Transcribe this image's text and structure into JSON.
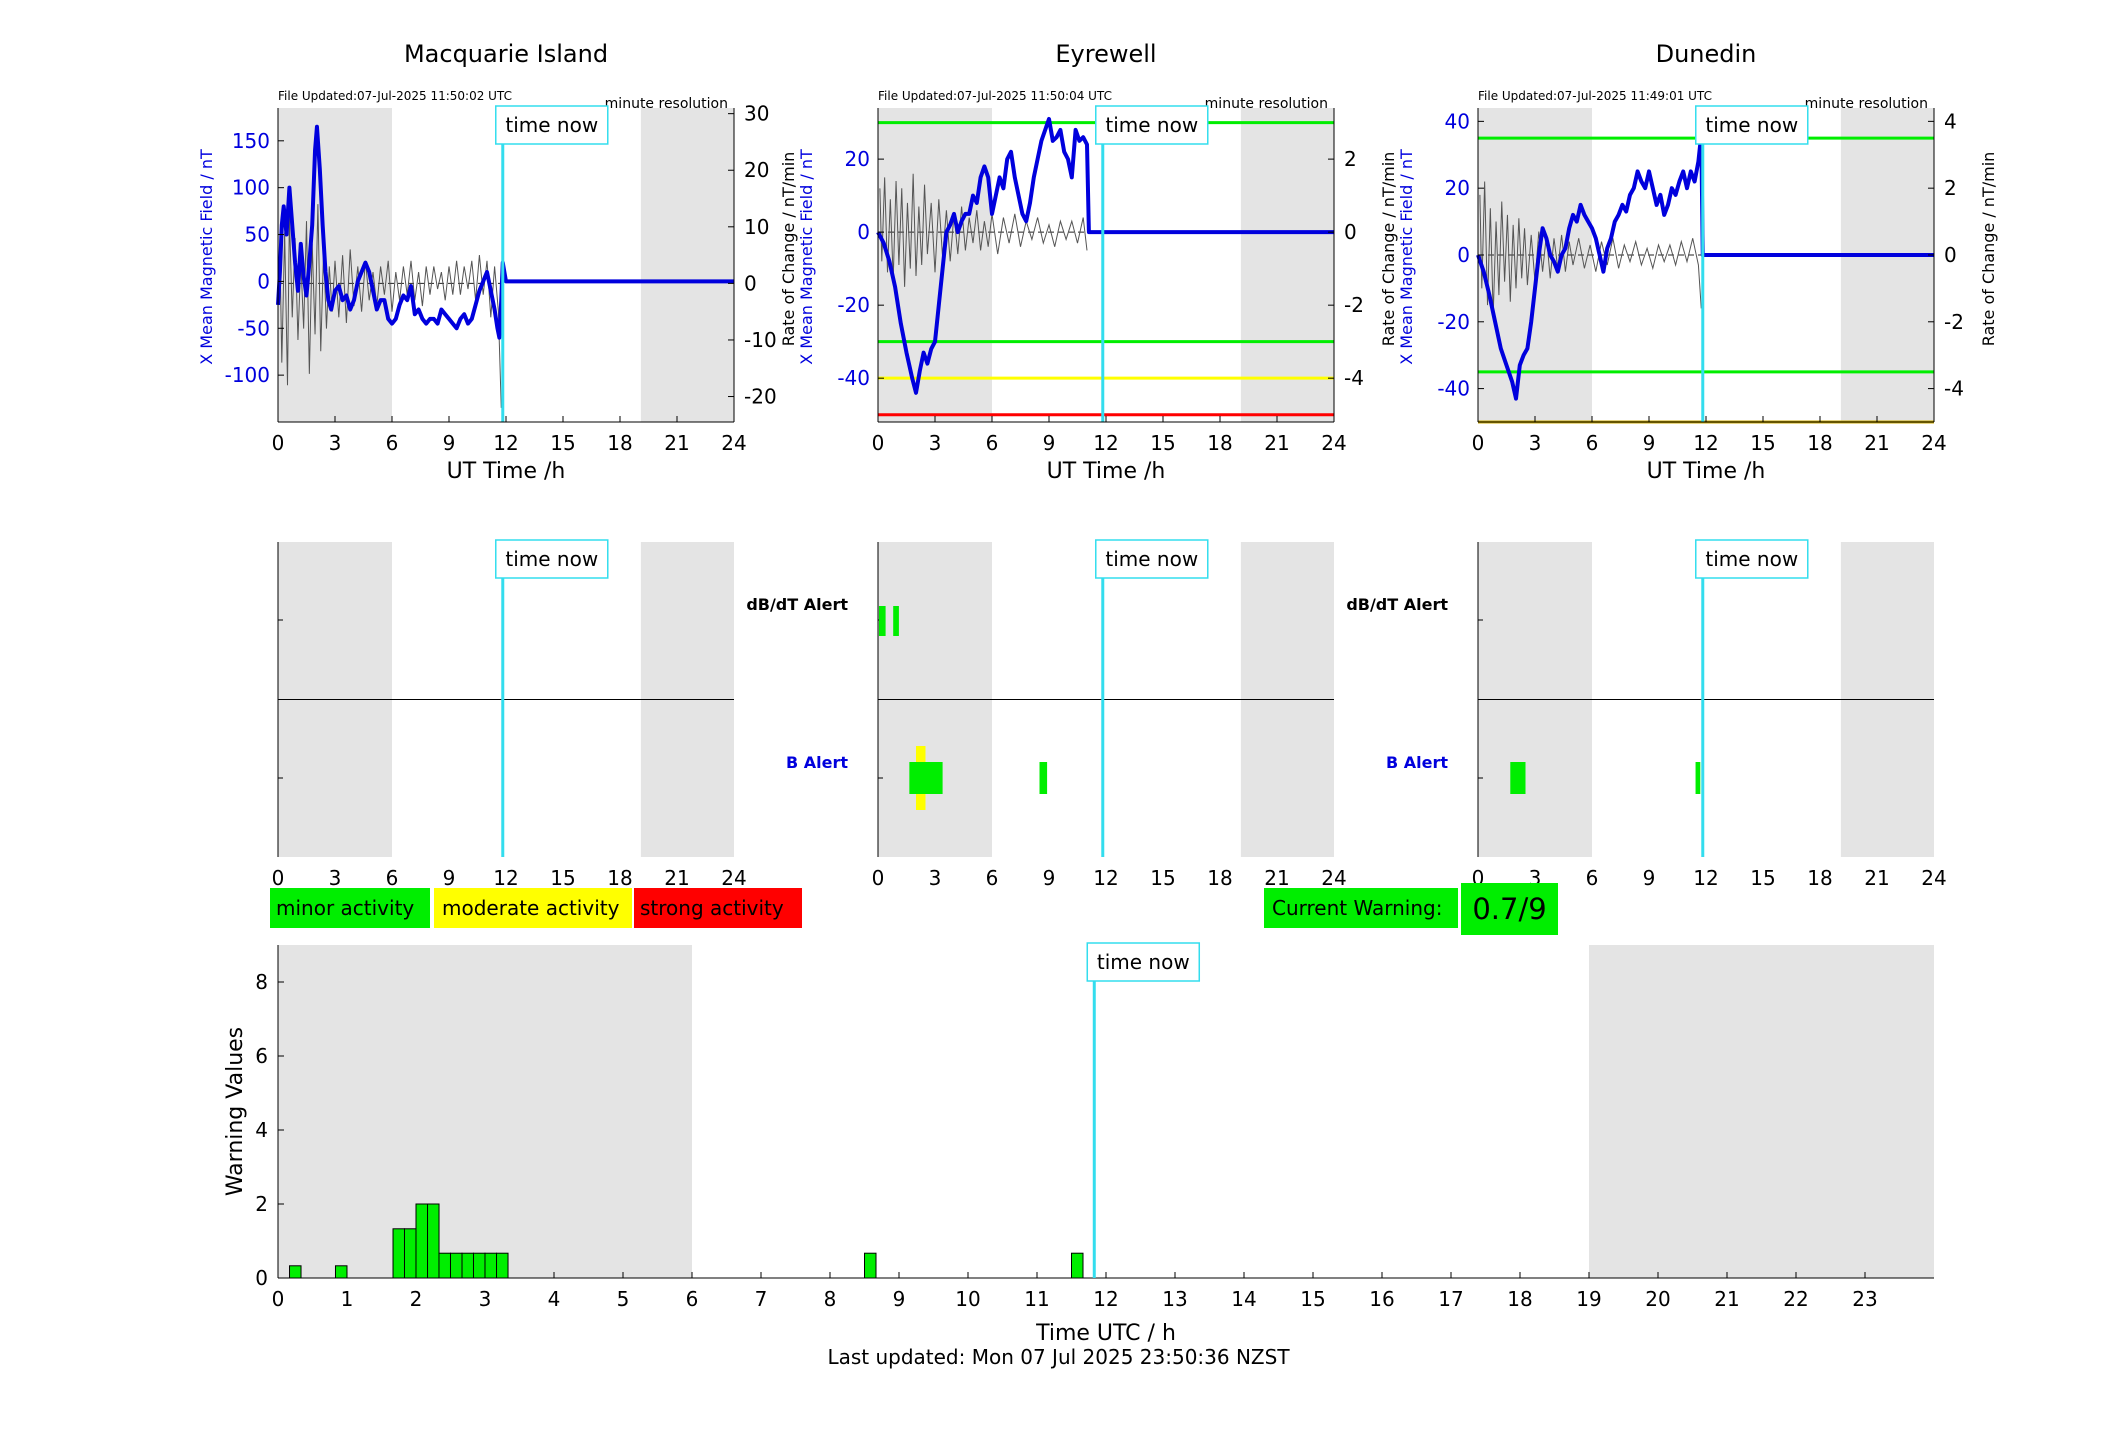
{
  "footer": {
    "last_updated": "Last updated: Mon 07 Jul 2025 23:50:36 NZST"
  },
  "warning_badge": {
    "label": "Current Warning:",
    "value": "0.7/9",
    "color": "#00ee00"
  },
  "legend": [
    {
      "label": "minor activity",
      "color": "#00ee00"
    },
    {
      "label": "moderate activity",
      "color": "#ffff00"
    },
    {
      "label": "strong activity",
      "color": "#ff0000"
    }
  ],
  "colors": {
    "field": "#0000dd",
    "rate": "#555555",
    "now_line": "#33ddee",
    "night": "#e4e4e4",
    "green": "#00ee00",
    "yellow": "#ffff00",
    "red": "#ff0000"
  },
  "chart_data": [
    {
      "type": "line",
      "title": "Macquarie Island",
      "file_updated": "File Updated:07-Jul-2025 11:50:02 UTC",
      "resolution": "minute resolution",
      "xlabel": "UT Time /h",
      "ylabel": "X Mean Magnetic Field / nT",
      "ylabel_right": "Rate of Change / nT/min",
      "xlim": [
        0,
        24
      ],
      "xticks": [
        0,
        3,
        6,
        9,
        12,
        15,
        18,
        21,
        24
      ],
      "ylim": [
        -150,
        185
      ],
      "yticks": [
        -100,
        -50,
        0,
        50,
        100,
        150
      ],
      "ylim_right": [
        -24.5,
        31
      ],
      "yticks_right": [
        -20,
        -10,
        0,
        10,
        20,
        30
      ],
      "now_label": "time now",
      "now_hour": 11.83,
      "night_hours": [
        [
          0,
          6
        ],
        [
          19.1,
          24
        ]
      ],
      "threshold_lines": [],
      "series": [
        {
          "x": [
            0,
            0.1,
            0.2,
            0.3,
            0.45,
            0.6,
            0.75,
            0.9,
            1.05,
            1.2,
            1.35,
            1.5,
            1.65,
            1.8,
            1.95,
            2.05,
            2.2,
            2.35,
            2.5,
            2.65,
            2.8,
            3.0,
            3.2,
            3.4,
            3.6,
            3.8,
            4.0,
            4.2,
            4.4,
            4.6,
            4.8,
            5.0,
            5.2,
            5.4,
            5.6,
            5.8,
            6.0,
            6.2,
            6.4,
            6.6,
            6.8,
            7.0,
            7.2,
            7.4,
            7.6,
            7.8,
            8.0,
            8.2,
            8.4,
            8.6,
            8.8,
            9.0,
            9.2,
            9.4,
            9.6,
            9.8,
            10.0,
            10.2,
            10.4,
            10.6,
            10.8,
            11.0,
            11.2,
            11.4,
            11.55,
            11.65,
            11.75,
            11.83,
            12,
            24
          ],
          "y": [
            -25,
            10,
            60,
            80,
            50,
            100,
            60,
            20,
            -10,
            40,
            5,
            -15,
            20,
            60,
            140,
            165,
            120,
            60,
            10,
            -20,
            -30,
            -10,
            -5,
            -20,
            -15,
            -30,
            -20,
            0,
            10,
            20,
            10,
            -10,
            -30,
            -20,
            -20,
            -40,
            -45,
            -40,
            -25,
            -15,
            -20,
            -5,
            -35,
            -30,
            -40,
            -45,
            -40,
            -40,
            -45,
            -30,
            -35,
            -40,
            -45,
            -50,
            -40,
            -35,
            -45,
            -40,
            -25,
            -10,
            0,
            10,
            -10,
            -30,
            -50,
            -60,
            -20,
            20,
            0,
            0
          ]
        }
      ],
      "rate_series": {
        "x": [
          0.1,
          0.2,
          0.35,
          0.5,
          0.6,
          0.75,
          0.9,
          1.05,
          1.2,
          1.35,
          1.5,
          1.65,
          1.8,
          1.95,
          2.1,
          2.25,
          2.4,
          2.55,
          2.7,
          2.85,
          3.0,
          3.2,
          3.4,
          3.6,
          3.8,
          4.0,
          4.2,
          4.4,
          4.6,
          4.8,
          5.0,
          5.2,
          5.4,
          5.6,
          5.8,
          6.0,
          6.2,
          6.4,
          6.6,
          6.8,
          7.0,
          7.2,
          7.4,
          7.6,
          7.8,
          8.0,
          8.2,
          8.4,
          8.6,
          8.8,
          9.0,
          9.2,
          9.4,
          9.6,
          9.8,
          10.0,
          10.2,
          10.4,
          10.6,
          10.8,
          11.0,
          11.2,
          11.4,
          11.6,
          11.75
        ],
        "y": [
          6,
          -14,
          9,
          -18,
          12,
          -6,
          8,
          -10,
          4,
          -8,
          11,
          -16,
          7,
          -9,
          14,
          -12,
          6,
          -8,
          3,
          -5,
          4,
          -6,
          5,
          -7,
          6,
          -4,
          3,
          -5,
          4,
          -3,
          2,
          -4,
          3,
          -2,
          4,
          -5,
          2,
          -3,
          3,
          -2,
          4,
          -3,
          2,
          -4,
          3,
          -2,
          3,
          -1,
          2,
          -3,
          3,
          -2,
          4,
          -2,
          3,
          -1,
          4,
          -3,
          5,
          -2,
          4,
          -6,
          3,
          -5,
          -22
        ]
      },
      "dbdt_alerts": [],
      "b_alerts": []
    },
    {
      "type": "line",
      "title": "Eyrewell",
      "file_updated": "File Updated:07-Jul-2025 11:50:04 UTC",
      "resolution": "minute resolution",
      "xlabel": "UT Time /h",
      "ylabel": "X Mean Magnetic Field / nT",
      "ylabel_right": "Rate of Change / nT/min",
      "xlim": [
        0,
        24
      ],
      "xticks": [
        0,
        3,
        6,
        9,
        12,
        15,
        18,
        21,
        24
      ],
      "ylim": [
        -52,
        34
      ],
      "yticks": [
        -40,
        -20,
        0,
        20
      ],
      "ylim_right": [
        -5.2,
        3.4
      ],
      "yticks_right": [
        -4,
        -2,
        0,
        2
      ],
      "now_label": "time now",
      "now_hour": 11.83,
      "night_hours": [
        [
          0,
          6
        ],
        [
          19.1,
          24
        ]
      ],
      "threshold_lines": [
        {
          "value": 30,
          "color": "#00ee00"
        },
        {
          "value": -30,
          "color": "#00ee00"
        },
        {
          "value": -40,
          "color": "#ffff00"
        },
        {
          "value": -50,
          "color": "#ff0000"
        }
      ],
      "series": [
        {
          "x": [
            0,
            0.3,
            0.6,
            0.9,
            1.2,
            1.5,
            1.8,
            2.0,
            2.2,
            2.4,
            2.6,
            2.8,
            3.0,
            3.2,
            3.4,
            3.6,
            3.8,
            4.0,
            4.2,
            4.4,
            4.6,
            4.8,
            5.0,
            5.2,
            5.4,
            5.6,
            5.8,
            6.0,
            6.2,
            6.4,
            6.6,
            6.8,
            7.0,
            7.2,
            7.4,
            7.6,
            7.8,
            8.0,
            8.2,
            8.4,
            8.6,
            8.8,
            9.0,
            9.2,
            9.4,
            9.6,
            9.8,
            10.0,
            10.2,
            10.4,
            10.6,
            10.8,
            11.0,
            11.1,
            11.83,
            12,
            24
          ],
          "y": [
            0,
            -3,
            -8,
            -15,
            -25,
            -33,
            -40,
            -44,
            -38,
            -33,
            -36,
            -32,
            -30,
            -20,
            -10,
            0,
            2,
            5,
            0,
            3,
            5,
            5,
            10,
            8,
            15,
            18,
            15,
            5,
            10,
            15,
            12,
            20,
            22,
            15,
            10,
            5,
            3,
            8,
            15,
            20,
            25,
            28,
            31,
            25,
            26,
            28,
            22,
            20,
            15,
            28,
            25,
            26,
            24,
            0,
            0,
            0,
            0
          ]
        }
      ],
      "rate_series": {
        "x": [
          0.1,
          0.2,
          0.35,
          0.5,
          0.65,
          0.8,
          0.95,
          1.1,
          1.25,
          1.4,
          1.55,
          1.7,
          1.85,
          2.0,
          2.15,
          2.3,
          2.45,
          2.6,
          2.8,
          3.0,
          3.2,
          3.4,
          3.6,
          3.8,
          4.0,
          4.2,
          4.4,
          4.6,
          4.8,
          5.0,
          5.2,
          5.4,
          5.6,
          5.8,
          6.0,
          6.3,
          6.6,
          6.9,
          7.2,
          7.5,
          7.8,
          8.1,
          8.4,
          8.7,
          9.0,
          9.3,
          9.6,
          9.9,
          10.2,
          10.5,
          10.8,
          11.0
        ],
        "y": [
          1.2,
          -0.8,
          1.5,
          -1.1,
          0.9,
          -1.3,
          1.4,
          -0.9,
          1.2,
          -1.5,
          0.8,
          -1.0,
          1.6,
          -1.2,
          0.7,
          -0.9,
          1.3,
          -0.6,
          0.8,
          -1.1,
          0.9,
          -0.7,
          0.6,
          -0.8,
          0.5,
          -0.6,
          0.7,
          -0.5,
          0.4,
          -0.3,
          0.6,
          -0.5,
          0.3,
          -0.4,
          0.5,
          -0.6,
          0.4,
          -0.3,
          0.5,
          -0.4,
          0.3,
          -0.2,
          0.4,
          -0.3,
          0.2,
          -0.4,
          0.3,
          -0.2,
          0.3,
          -0.3,
          0.4,
          -0.5
        ]
      },
      "dbdt_alerts": [
        {
          "start": 0.05,
          "end": 0.4,
          "level": "minor"
        },
        {
          "start": 0.8,
          "end": 1.1,
          "level": "minor"
        }
      ],
      "b_alerts": [
        {
          "start": 2.0,
          "end": 2.5,
          "level": "moderate"
        },
        {
          "start": 1.65,
          "end": 3.4,
          "level": "minor"
        },
        {
          "start": 8.5,
          "end": 8.9,
          "level": "minor"
        }
      ]
    },
    {
      "type": "line",
      "title": "Dunedin",
      "file_updated": "File Updated:07-Jul-2025 11:49:01 UTC",
      "resolution": "minute resolution",
      "xlabel": "UT Time /h",
      "ylabel": "X Mean Magnetic Field / nT",
      "ylabel_right": "Rate of Change / nT/min",
      "xlim": [
        0,
        24
      ],
      "xticks": [
        0,
        3,
        6,
        9,
        12,
        15,
        18,
        21,
        24
      ],
      "ylim": [
        -50,
        44
      ],
      "yticks": [
        -40,
        -20,
        0,
        20,
        40
      ],
      "ylim_right": [
        -5.0,
        4.4
      ],
      "yticks_right": [
        -4,
        -2,
        0,
        2,
        4
      ],
      "now_label": "time now",
      "now_hour": 11.83,
      "night_hours": [
        [
          0,
          6
        ],
        [
          19.1,
          24
        ]
      ],
      "threshold_lines": [
        {
          "value": 35,
          "color": "#00ee00"
        },
        {
          "value": -35,
          "color": "#00ee00"
        },
        {
          "value": -50,
          "color": "#ccaa00"
        }
      ],
      "series": [
        {
          "x": [
            0,
            0.3,
            0.6,
            0.9,
            1.2,
            1.5,
            1.8,
            2.0,
            2.2,
            2.4,
            2.6,
            2.8,
            3.0,
            3.2,
            3.4,
            3.6,
            3.8,
            4.0,
            4.2,
            4.4,
            4.6,
            4.8,
            5.0,
            5.2,
            5.4,
            5.6,
            5.8,
            6.0,
            6.2,
            6.4,
            6.6,
            6.8,
            7.0,
            7.2,
            7.4,
            7.6,
            7.8,
            8.0,
            8.2,
            8.4,
            8.6,
            8.8,
            9.0,
            9.2,
            9.4,
            9.6,
            9.8,
            10.0,
            10.2,
            10.4,
            10.6,
            10.8,
            11.0,
            11.2,
            11.4,
            11.6,
            11.75,
            11.83,
            12,
            24
          ],
          "y": [
            0,
            -5,
            -12,
            -20,
            -28,
            -33,
            -38,
            -43,
            -33,
            -30,
            -28,
            -20,
            -10,
            0,
            8,
            5,
            0,
            -2,
            -5,
            0,
            2,
            8,
            12,
            10,
            15,
            12,
            10,
            8,
            5,
            0,
            -5,
            2,
            5,
            10,
            12,
            15,
            13,
            18,
            20,
            25,
            22,
            20,
            25,
            20,
            15,
            18,
            12,
            15,
            20,
            18,
            22,
            25,
            20,
            25,
            22,
            28,
            36,
            0,
            0,
            0
          ]
        }
      ],
      "rate_series": {
        "x": [
          0.1,
          0.2,
          0.35,
          0.5,
          0.65,
          0.8,
          0.95,
          1.1,
          1.25,
          1.4,
          1.55,
          1.7,
          1.85,
          2.0,
          2.15,
          2.3,
          2.45,
          2.6,
          2.8,
          3.0,
          3.2,
          3.4,
          3.6,
          3.8,
          4.0,
          4.2,
          4.4,
          4.6,
          4.8,
          5.0,
          5.3,
          5.6,
          5.9,
          6.2,
          6.5,
          6.8,
          7.1,
          7.4,
          7.7,
          8.0,
          8.3,
          8.6,
          8.9,
          9.2,
          9.5,
          9.8,
          10.1,
          10.4,
          10.7,
          11.0,
          11.3,
          11.6,
          11.75
        ],
        "y": [
          1.8,
          -1.0,
          2.2,
          -1.5,
          1.4,
          -1.8,
          1.0,
          -1.2,
          1.6,
          -0.8,
          1.2,
          -1.4,
          0.9,
          -1.0,
          1.1,
          -0.7,
          0.8,
          -0.9,
          0.6,
          -0.8,
          0.7,
          -0.5,
          0.6,
          -0.7,
          0.5,
          -0.4,
          0.6,
          -0.5,
          0.4,
          -0.3,
          0.5,
          -0.4,
          0.3,
          -0.5,
          0.4,
          -0.3,
          0.5,
          -0.4,
          0.3,
          -0.2,
          0.4,
          -0.3,
          0.2,
          -0.4,
          0.3,
          -0.2,
          0.3,
          -0.3,
          0.4,
          -0.2,
          0.5,
          -0.3,
          -1.6
        ]
      },
      "dbdt_alerts": [],
      "b_alerts": [
        {
          "start": 1.7,
          "end": 2.5,
          "level": "minor"
        },
        {
          "start": 11.45,
          "end": 11.7,
          "level": "minor"
        }
      ]
    },
    {
      "type": "bar",
      "title": "",
      "xlabel": "Time UTC / h",
      "ylabel": "Warning Values",
      "xlim": [
        0,
        24
      ],
      "xticks": [
        0,
        1,
        2,
        3,
        4,
        5,
        6,
        7,
        8,
        9,
        10,
        11,
        12,
        13,
        14,
        15,
        16,
        17,
        18,
        19,
        20,
        21,
        22,
        23
      ],
      "ylim": [
        0,
        9
      ],
      "yticks": [
        0,
        2,
        4,
        6,
        8
      ],
      "now_label": "time now",
      "now_hour": 11.83,
      "night_hours": [
        [
          0,
          6
        ],
        [
          19,
          24
        ]
      ],
      "bar_width": 0.1667,
      "bars": [
        {
          "x": 0.167,
          "value": 0.33
        },
        {
          "x": 0.833,
          "value": 0.33
        },
        {
          "x": 1.667,
          "value": 1.33
        },
        {
          "x": 1.833,
          "value": 1.33
        },
        {
          "x": 2.0,
          "value": 2.0
        },
        {
          "x": 2.167,
          "value": 2.0
        },
        {
          "x": 2.333,
          "value": 0.67
        },
        {
          "x": 2.5,
          "value": 0.67
        },
        {
          "x": 2.667,
          "value": 0.67
        },
        {
          "x": 2.833,
          "value": 0.67
        },
        {
          "x": 3.0,
          "value": 0.67
        },
        {
          "x": 3.167,
          "value": 0.67
        },
        {
          "x": 8.5,
          "value": 0.67
        },
        {
          "x": 11.5,
          "value": 0.67
        }
      ]
    }
  ]
}
